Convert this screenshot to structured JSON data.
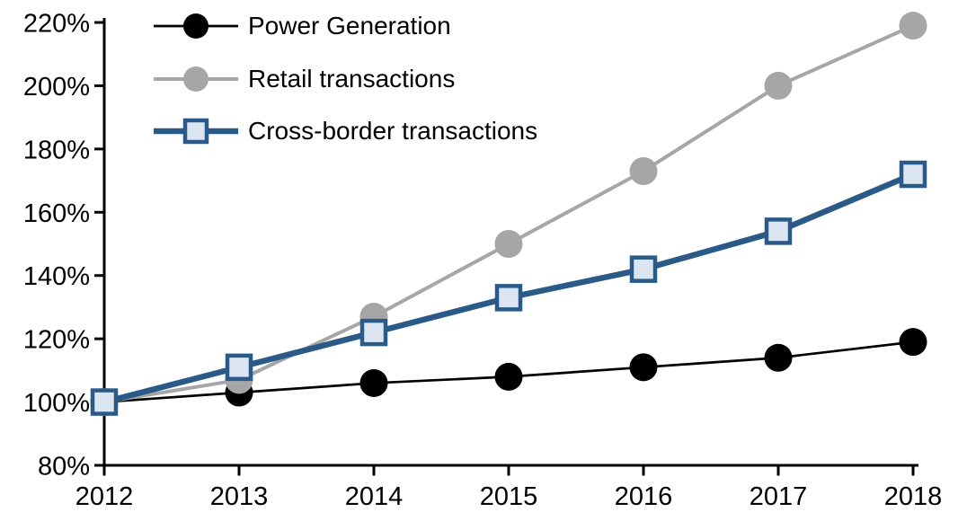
{
  "chart_data": {
    "type": "line",
    "title": "",
    "categories": [
      "2012",
      "2013",
      "2014",
      "2015",
      "2016",
      "2017",
      "2018"
    ],
    "y_ticks": [
      80,
      100,
      120,
      140,
      160,
      180,
      200,
      220
    ],
    "y_tick_labels": [
      "80%",
      "100%",
      "120%",
      "140%",
      "160%",
      "180%",
      "200%",
      "220%"
    ],
    "ylim": [
      80,
      220
    ],
    "unit": "%",
    "grid": false,
    "legend_position": "top-left-inside",
    "axis_color": "#000000",
    "background_color": "#ffffff",
    "series": [
      {
        "name": "Power Generation",
        "marker": "circle",
        "color": "#000000",
        "marker_fill": "#000000",
        "line_width": 2.7,
        "values": [
          100,
          103,
          106,
          108,
          111,
          114,
          119
        ]
      },
      {
        "name": "Retail transactions",
        "marker": "circle",
        "color": "#a6a6a6",
        "marker_fill": "#a6a6a6",
        "line_width": 4,
        "values": [
          100,
          107,
          127,
          150,
          173,
          200,
          219
        ]
      },
      {
        "name": "Cross-border transactions",
        "marker": "square",
        "color": "#2a5a88",
        "marker_fill": "#dce6f2",
        "line_width": 6.5,
        "values": [
          100,
          111,
          122,
          133,
          142,
          154,
          172
        ]
      }
    ]
  }
}
